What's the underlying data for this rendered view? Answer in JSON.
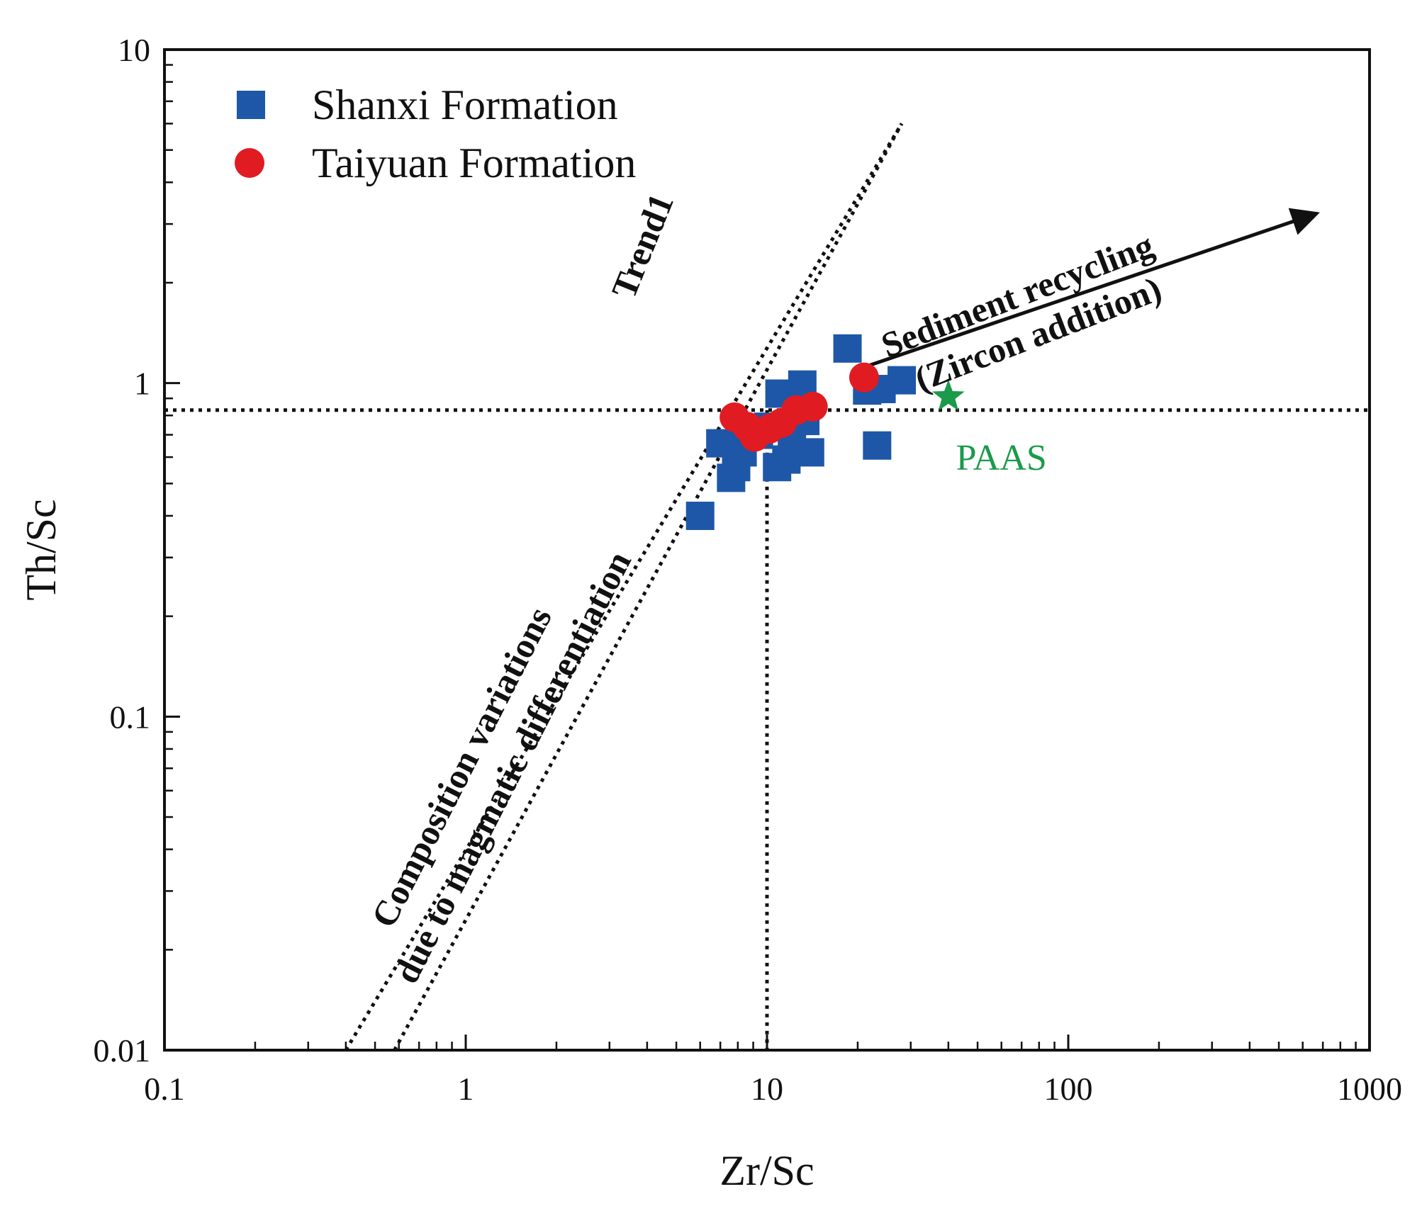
{
  "chart_data": {
    "type": "scatter",
    "xscale": "log",
    "yscale": "log",
    "xlabel": "Zr/Sc",
    "ylabel": "Th/Sc",
    "xlim": [
      0.1,
      1000
    ],
    "ylim": [
      0.01,
      10
    ],
    "xticks": [
      0.1,
      1,
      10,
      100,
      1000
    ],
    "yticks": [
      0.01,
      0.1,
      1,
      10
    ],
    "xtick_labels": [
      "0.1",
      "1",
      "10",
      "100",
      "1000"
    ],
    "ytick_labels": [
      "0.01",
      "0.1",
      "1",
      "10"
    ],
    "legend_position": "top-left",
    "series": [
      {
        "name": "Shanxi Formation",
        "marker": "square",
        "color": "#1f57a8",
        "points": [
          [
            6.0,
            0.4
          ],
          [
            7.0,
            0.66
          ],
          [
            7.6,
            0.52
          ],
          [
            7.9,
            0.56
          ],
          [
            8.3,
            0.62
          ],
          [
            8.6,
            0.72
          ],
          [
            9.4,
            0.7
          ],
          [
            10.1,
            0.74
          ],
          [
            10.8,
            0.56
          ],
          [
            11.0,
            0.93
          ],
          [
            11.6,
            0.59
          ],
          [
            12.1,
            0.65
          ],
          [
            12.6,
            0.82
          ],
          [
            13.1,
            0.99
          ],
          [
            13.4,
            0.77
          ],
          [
            13.9,
            0.62
          ],
          [
            18.5,
            1.27
          ],
          [
            21.5,
            0.95
          ],
          [
            23.2,
            0.65
          ],
          [
            24.0,
            0.96
          ],
          [
            28.0,
            1.02
          ]
        ]
      },
      {
        "name": "Taiyuan Formation",
        "marker": "circle",
        "color": "#e11b22",
        "points": [
          [
            7.8,
            0.79
          ],
          [
            8.6,
            0.74
          ],
          [
            9.1,
            0.69
          ],
          [
            10.2,
            0.73
          ],
          [
            11.2,
            0.76
          ],
          [
            12.5,
            0.83
          ],
          [
            14.2,
            0.85
          ],
          [
            21.0,
            1.04
          ]
        ]
      },
      {
        "name": "PAAS",
        "marker": "star",
        "color": "#1a9a4a",
        "points": [
          [
            40.0,
            0.91
          ]
        ]
      }
    ],
    "reference_lines": {
      "horizontal_y": 0.83,
      "vertical_x": 10,
      "trend1": [
        [
          0.58,
          0.01
        ],
        [
          28,
          6
        ]
      ],
      "magmatic": [
        [
          0.4,
          0.01
        ],
        [
          28,
          6
        ]
      ]
    },
    "arrow": {
      "from": [
        20,
        1.1
      ],
      "to": [
        650,
        3.2
      ]
    },
    "annotations": {
      "trend": "Trend1",
      "composition_line1": "Composition variations",
      "composition_line2": "due to magmatic differentiation",
      "recycling_line1": "Sediment recycling",
      "recycling_line2": "(Zircon addition)",
      "paas": "PAAS"
    }
  }
}
